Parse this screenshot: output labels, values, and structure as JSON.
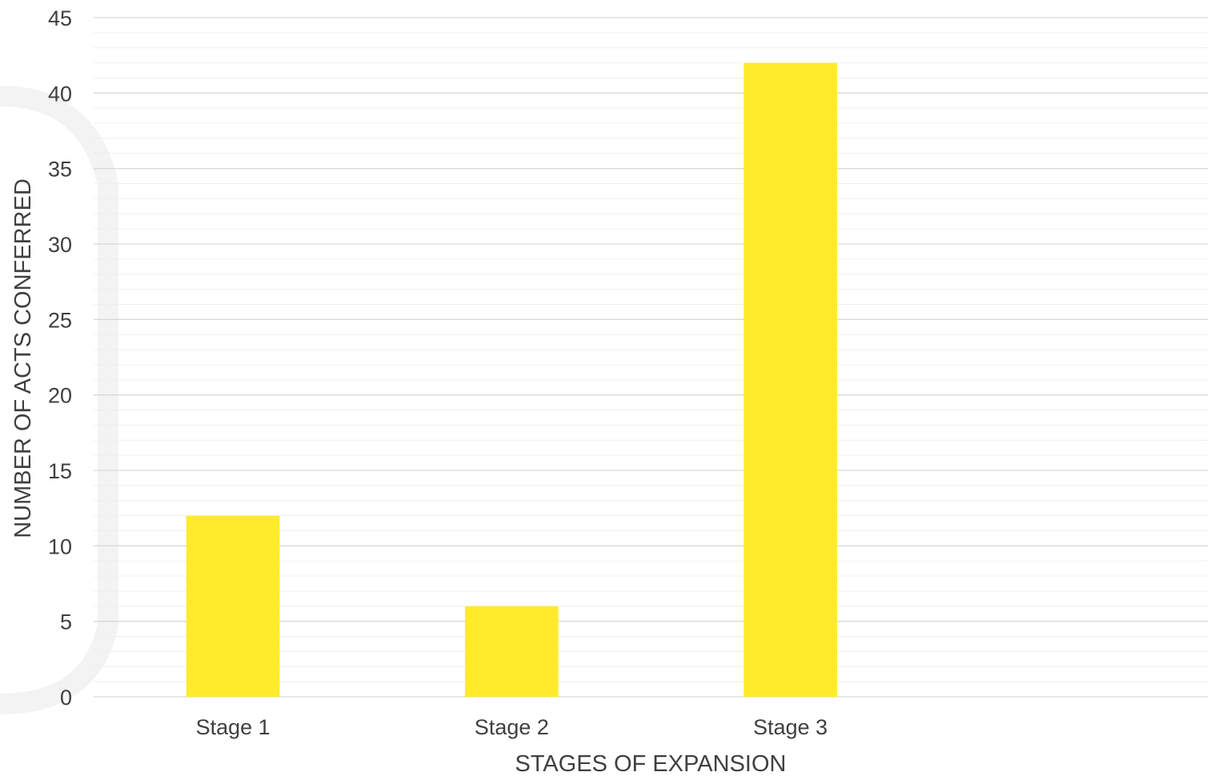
{
  "chart_data": {
    "type": "bar",
    "categories": [
      "Stage 1",
      "Stage 2",
      "Stage 3",
      ""
    ],
    "series": [
      {
        "values": [
          12,
          6,
          42,
          null
        ]
      }
    ],
    "xlabel": "STAGES OF EXPANSION",
    "ylabel": "NUMBER OF ACTS CONFERRED",
    "ylim": [
      0,
      45
    ],
    "y_major_step": 5,
    "y_minor_step": 1,
    "grid": true,
    "legend": "none",
    "colors": {
      "bar": "#FFEB2B",
      "major_grid": "#D9D9D9",
      "minor_grid": "#EFEFEF",
      "text": "#404040"
    }
  }
}
